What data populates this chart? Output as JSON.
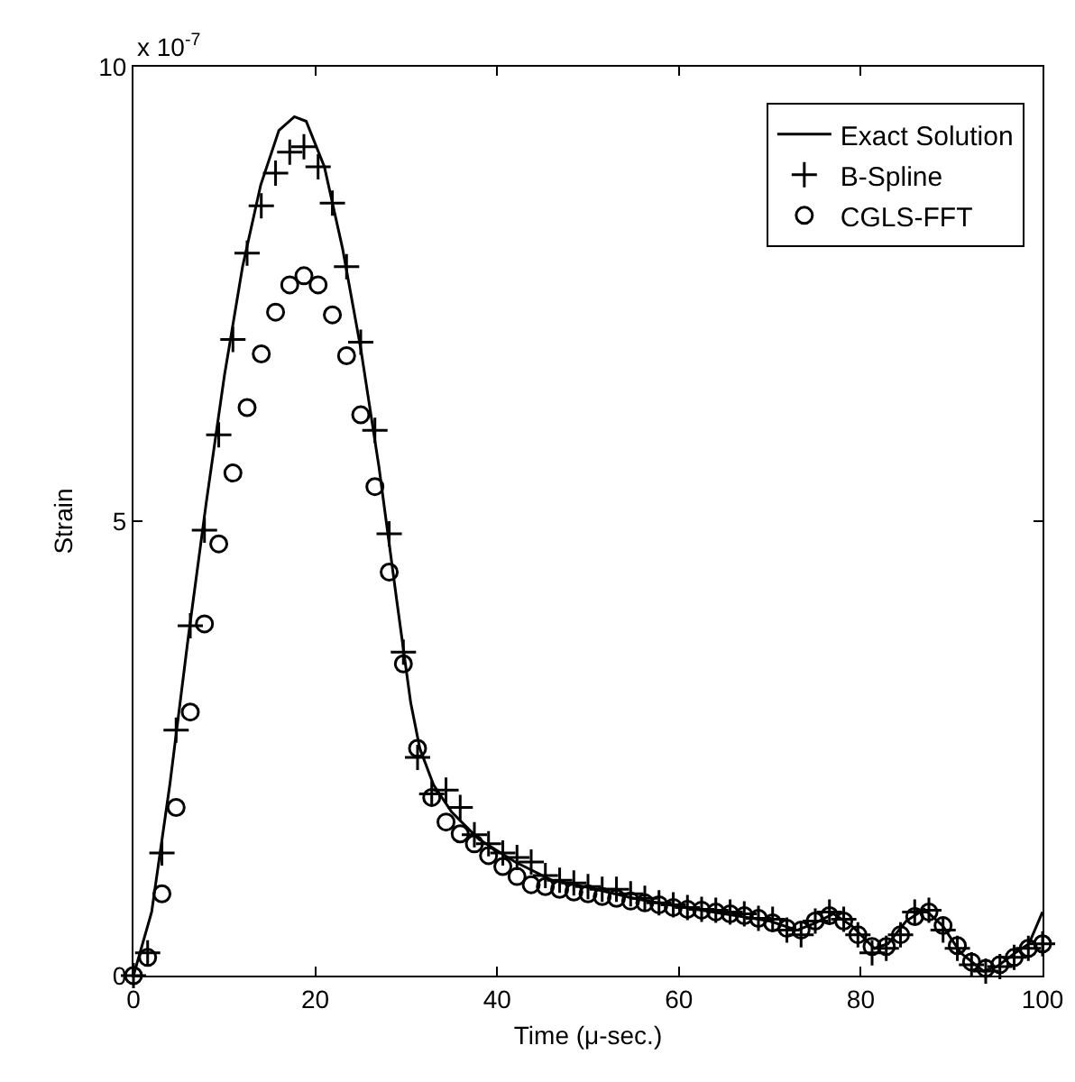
{
  "chart_data": {
    "type": "line",
    "xlabel": "Time (μ-sec.)",
    "ylabel": "Strain",
    "annotations": [
      "x 10$^{-7}$"
    ],
    "xlim": [
      0,
      100
    ],
    "xticks": [
      0,
      20,
      40,
      60,
      80,
      100
    ],
    "ylim": [
      0,
      10
    ],
    "yticks": [
      0,
      5,
      10
    ],
    "grid": false,
    "legend": "top right",
    "series": [
      {
        "name": "Exact Solution",
        "color": "#000000",
        "marker": "none",
        "line_style": "solid",
        "x": [
          0,
          2,
          4,
          6,
          8,
          10,
          12,
          14,
          16,
          17.7,
          19,
          21,
          23,
          25,
          27,
          29,
          30.5,
          31.5,
          33,
          35,
          38,
          42,
          46,
          50,
          55,
          60,
          65,
          70,
          73,
          75,
          77,
          79,
          81.5,
          83,
          85,
          87,
          89,
          91,
          93.5,
          95,
          97,
          98.5,
          100
        ],
        "values": [
          0,
          0.7,
          2.1,
          3.7,
          5.2,
          6.6,
          7.8,
          8.7,
          9.3,
          9.45,
          9.4,
          8.9,
          8.0,
          6.9,
          5.6,
          4.1,
          3.0,
          2.5,
          2.1,
          1.8,
          1.5,
          1.25,
          1.05,
          0.97,
          0.85,
          0.76,
          0.68,
          0.6,
          0.5,
          0.58,
          0.68,
          0.55,
          0.3,
          0.35,
          0.6,
          0.73,
          0.55,
          0.25,
          0.05,
          0.1,
          0.25,
          0.35,
          0.7
        ]
      },
      {
        "name": "B-Spline",
        "type": "scatter",
        "color": "#000000",
        "marker": "cross",
        "x": [
          0,
          1.56,
          3.13,
          4.69,
          6.25,
          7.81,
          9.38,
          10.94,
          12.5,
          14.06,
          15.63,
          17.19,
          18.75,
          20.31,
          21.88,
          23.44,
          25,
          26.56,
          28.13,
          29.69,
          31.25,
          32.81,
          34.38,
          35.94,
          37.5,
          39.06,
          40.63,
          42.19,
          43.75,
          45.31,
          46.88,
          48.44,
          50,
          51.56,
          53.13,
          54.69,
          56.25,
          57.81,
          59.38,
          60.94,
          62.5,
          64.06,
          65.63,
          67.19,
          68.75,
          70.31,
          71.88,
          73.44,
          75,
          76.56,
          78.13,
          79.69,
          81.25,
          82.81,
          84.38,
          85.94,
          87.5,
          89.06,
          90.63,
          92.19,
          93.75,
          95.31,
          96.88,
          98.44,
          100
        ],
        "values": [
          0,
          0.25,
          1.35,
          2.7,
          3.85,
          4.9,
          5.95,
          7.0,
          7.95,
          8.47,
          8.83,
          9.06,
          9.12,
          8.9,
          8.5,
          7.8,
          6.97,
          6.0,
          4.86,
          3.56,
          2.4,
          2.0,
          2.04,
          1.85,
          1.55,
          1.45,
          1.35,
          1.3,
          1.25,
          1.1,
          1.05,
          1.02,
          0.98,
          0.95,
          0.95,
          0.9,
          0.85,
          0.8,
          0.78,
          0.75,
          0.73,
          0.72,
          0.7,
          0.68,
          0.63,
          0.62,
          0.5,
          0.45,
          0.6,
          0.7,
          0.62,
          0.45,
          0.25,
          0.3,
          0.45,
          0.7,
          0.72,
          0.5,
          0.3,
          0.12,
          0.05,
          0.1,
          0.2,
          0.3,
          0.35
        ]
      },
      {
        "name": "CGLS-FFT",
        "type": "scatter",
        "color": "#000000",
        "marker": "circle",
        "x": [
          0,
          1.56,
          3.13,
          4.69,
          6.25,
          7.81,
          9.38,
          10.94,
          12.5,
          14.06,
          15.63,
          17.19,
          18.75,
          20.31,
          21.88,
          23.44,
          25,
          26.56,
          28.13,
          29.69,
          31.25,
          32.81,
          34.38,
          35.94,
          37.5,
          39.06,
          40.63,
          42.19,
          43.75,
          45.31,
          46.88,
          48.44,
          50,
          51.56,
          53.13,
          54.69,
          56.25,
          57.81,
          59.38,
          60.94,
          62.5,
          64.06,
          65.63,
          67.19,
          68.75,
          70.31,
          71.88,
          73.44,
          75,
          76.56,
          78.13,
          79.69,
          81.25,
          82.81,
          84.38,
          85.94,
          87.5,
          89.06,
          90.63,
          92.19,
          93.75,
          95.31,
          96.88,
          98.44,
          100
        ],
        "values": [
          0,
          0.2,
          0.9,
          1.85,
          2.9,
          3.87,
          4.75,
          5.53,
          6.25,
          6.84,
          7.3,
          7.6,
          7.7,
          7.6,
          7.27,
          6.82,
          6.17,
          5.38,
          4.44,
          3.43,
          2.5,
          1.96,
          1.69,
          1.56,
          1.45,
          1.32,
          1.2,
          1.09,
          1.0,
          0.98,
          0.95,
          0.92,
          0.9,
          0.87,
          0.85,
          0.82,
          0.8,
          0.78,
          0.75,
          0.73,
          0.72,
          0.7,
          0.68,
          0.66,
          0.63,
          0.58,
          0.52,
          0.5,
          0.6,
          0.66,
          0.6,
          0.45,
          0.32,
          0.32,
          0.45,
          0.65,
          0.7,
          0.55,
          0.33,
          0.15,
          0.08,
          0.12,
          0.2,
          0.3,
          0.35
        ]
      }
    ]
  }
}
